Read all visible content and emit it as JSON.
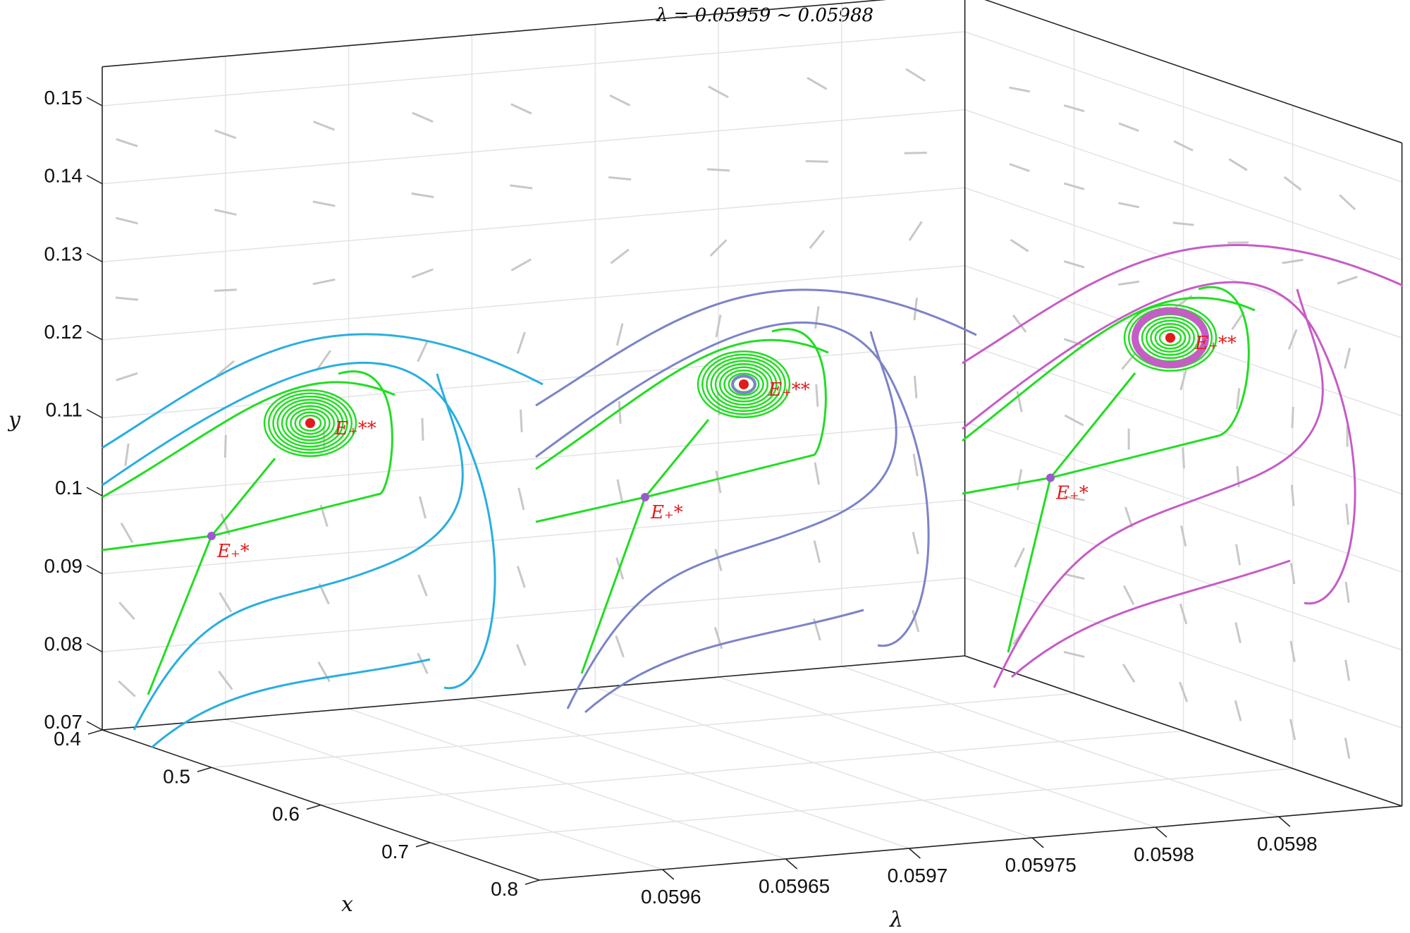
{
  "chart_data": {
    "type": "3d phase portrait",
    "title": "λ = 0.05959 ∼ 0.05988",
    "xlabel": "x",
    "ylabel": "y",
    "zlabel": "λ",
    "xlim": [
      0.4,
      0.8
    ],
    "ylim": [
      0.07,
      0.15
    ],
    "zlim": [
      0.05955,
      0.0599
    ],
    "x_ticks": [
      "0.4",
      "0.5",
      "0.6",
      "0.7",
      "0.8"
    ],
    "y_ticks": [
      "0.07",
      "0.08",
      "0.09",
      "0.1",
      "0.11",
      "0.12",
      "0.13",
      "0.14",
      "0.15"
    ],
    "lambda_ticks": [
      "0.0596",
      "0.05965",
      "0.0597",
      "0.05975",
      "0.0598",
      "0.0598"
    ],
    "grid": true,
    "panels": [
      {
        "lambda": 0.05959,
        "trajectory_color": "#29aee0",
        "saddle": {
          "label": "E₊*",
          "x": 0.49,
          "y": 0.095,
          "color": "#9b59d0"
        },
        "focus": {
          "label": "E₊**",
          "x": 0.555,
          "y": 0.1105,
          "color": "#e31a1c",
          "stability": "stable focus"
        },
        "separatrix_color": "#22dd22"
      },
      {
        "lambda": 0.05973,
        "trajectory_color": "#7b83c8",
        "saddle": {
          "label": "E₊*",
          "x": 0.49,
          "y": 0.1,
          "color": "#9b59d0"
        },
        "focus": {
          "label": "E₊**",
          "x": 0.555,
          "y": 0.1155,
          "color": "#e31a1c",
          "stability": "weak focus with small limit cycle"
        },
        "separatrix_color": "#22dd22"
      },
      {
        "lambda": 0.05988,
        "trajectory_color": "#c65cc6",
        "saddle": {
          "label": "E₊*",
          "x": 0.49,
          "y": 0.1025,
          "color": "#9b59d0"
        },
        "focus": {
          "label": "E₊**",
          "x": 0.555,
          "y": 0.1215,
          "color": "#e31a1c",
          "stability": "unstable focus surrounded by limit cycle"
        },
        "separatrix_color": "#22dd22"
      }
    ],
    "vector_field_color": "#c8c8c8"
  }
}
